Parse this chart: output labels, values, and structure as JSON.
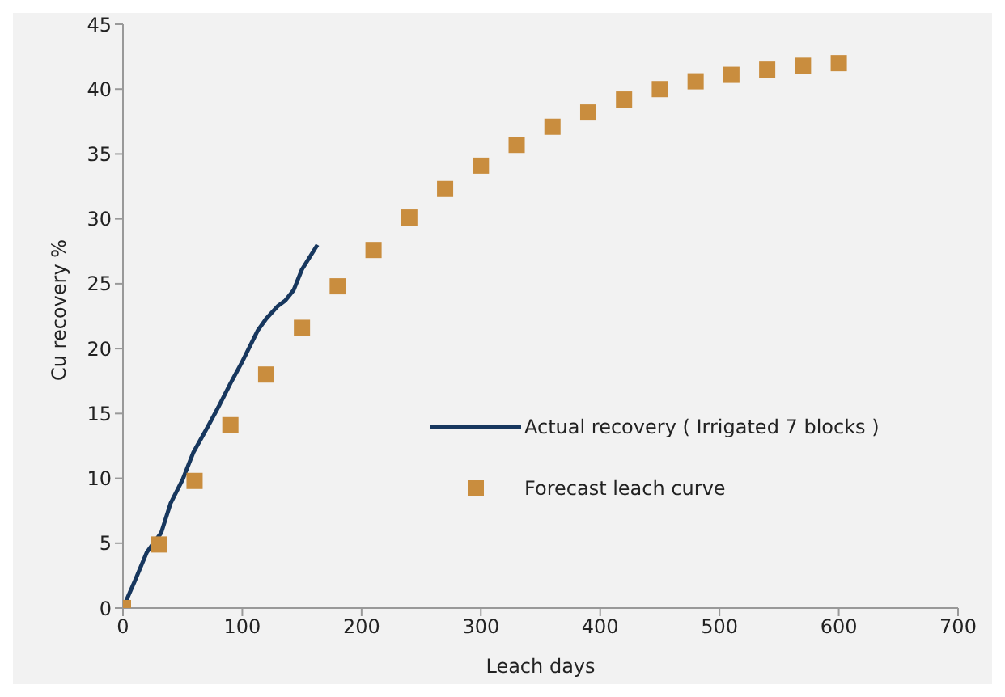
{
  "chart_data": {
    "type": "line",
    "xlabel": "Leach days",
    "ylabel": "Cu recovery %",
    "xlim": [
      0,
      700
    ],
    "xticks": [
      0,
      100,
      200,
      300,
      400,
      500,
      600,
      700
    ],
    "ylim": [
      0,
      45
    ],
    "yticks": [
      0,
      5,
      10,
      15,
      20,
      25,
      30,
      35,
      40,
      45
    ],
    "grid": false,
    "legend": "right",
    "series": [
      {
        "name": "Actual recovery ( Irrigated 7 blocks )",
        "color": "#17375e",
        "marker": "none",
        "x": [
          0,
          10,
          20,
          32,
          40,
          50,
          59,
          70,
          80,
          90,
          100,
          113,
          120,
          130,
          136,
          143,
          150,
          163
        ],
        "values": [
          0,
          2.1,
          4.3,
          5.8,
          8.1,
          9.9,
          12.0,
          13.8,
          15.5,
          17.3,
          19.0,
          21.4,
          22.3,
          23.3,
          23.7,
          24.5,
          26.1,
          28.0
        ]
      },
      {
        "name": "Forecast leach curve",
        "type": "scatter",
        "color": "#c98d3e",
        "marker": "square",
        "x": [
          0,
          30,
          60,
          90,
          120,
          150,
          180,
          210,
          240,
          270,
          300,
          330,
          360,
          390,
          420,
          450,
          480,
          510,
          540,
          570,
          600
        ],
        "values": [
          0,
          4.9,
          9.8,
          14.1,
          18.0,
          21.6,
          24.8,
          27.6,
          30.1,
          32.3,
          34.1,
          35.7,
          37.1,
          38.2,
          39.2,
          40.0,
          40.6,
          41.1,
          41.5,
          41.8,
          42.0
        ]
      }
    ]
  }
}
